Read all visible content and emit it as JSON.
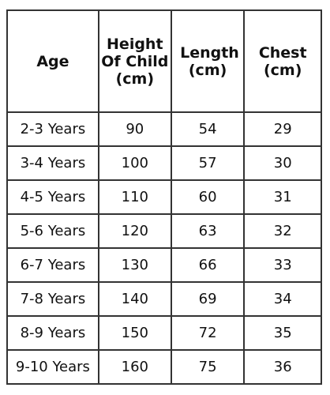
{
  "table": {
    "header": [
      "Age",
      "Height Of Child (cm)",
      "Length (cm)",
      "Chest (cm)"
    ],
    "rows": [
      [
        "2-3 Years",
        90,
        54,
        29
      ],
      [
        "3-4 Years",
        100,
        57,
        30
      ],
      [
        "4-5 Years",
        110,
        60,
        31
      ],
      [
        "5-6 Years",
        120,
        63,
        32
      ],
      [
        "6-7 Years",
        130,
        66,
        33
      ],
      [
        "7-8 Years",
        140,
        69,
        34
      ],
      [
        "8-9 Years",
        150,
        72,
        35
      ],
      [
        "9-10 Years",
        160,
        75,
        36
      ]
    ]
  }
}
